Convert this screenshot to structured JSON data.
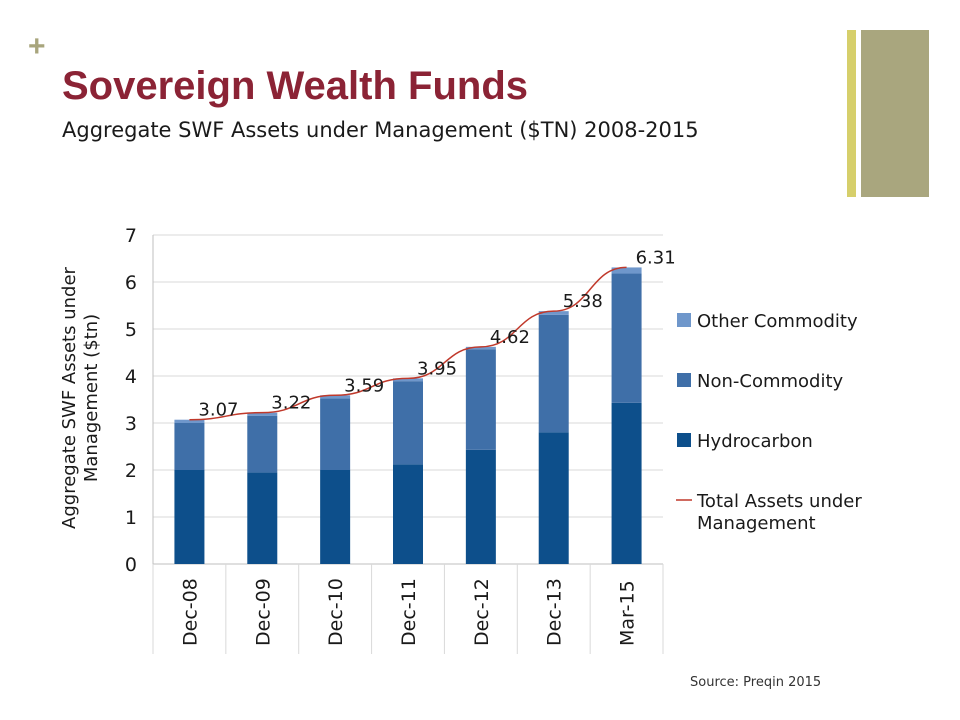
{
  "header": {
    "plus": "+",
    "title": "Sovereign Wealth Funds",
    "subtitle": "Aggregate SWF Assets under Management ($TN) 2008-2015"
  },
  "source": "Source: Preqin 2015",
  "colors": {
    "title": "#8b2335",
    "hydrocarbon": "#0d4f8b",
    "non_commodity": "#3f6fa8",
    "other_commodity": "#6f97cb",
    "total_line": "#c0392b",
    "accent_thin": "#d6cf6b",
    "accent_thick": "#a9a67e"
  },
  "chart_data": {
    "type": "bar",
    "stacked": true,
    "categories": [
      "Dec-08",
      "Dec-09",
      "Dec-10",
      "Dec-11",
      "Dec-12",
      "Dec-13",
      "Mar-15"
    ],
    "series": [
      {
        "name": "Hydrocarbon",
        "values": [
          2.0,
          1.95,
          2.0,
          2.12,
          2.43,
          2.8,
          3.43
        ]
      },
      {
        "name": "Non-Commodity",
        "values": [
          1.0,
          1.2,
          1.52,
          1.77,
          2.14,
          2.5,
          2.75
        ]
      },
      {
        "name": "Other Commodity",
        "values": [
          0.07,
          0.07,
          0.07,
          0.06,
          0.05,
          0.08,
          0.13
        ]
      }
    ],
    "line": {
      "name": "Total Assets under Management",
      "values": [
        3.07,
        3.22,
        3.59,
        3.95,
        4.62,
        5.38,
        6.31
      ]
    },
    "data_labels": [
      "3.07",
      "3.22",
      "3.59",
      "3.95",
      "4.62",
      "5.38",
      "6.31"
    ],
    "ylabel_lines": [
      "Aggregate SWF Assets under",
      "Management ($tn)"
    ],
    "ylim": [
      0,
      7
    ],
    "yticks": [
      0,
      1,
      2,
      3,
      4,
      5,
      6,
      7
    ],
    "legend_position": "right",
    "legend": [
      {
        "label_lines": [
          "Other Commodity"
        ],
        "kind": "box",
        "color_key": "other_commodity"
      },
      {
        "label_lines": [
          "Non-Commodity"
        ],
        "kind": "box",
        "color_key": "non_commodity"
      },
      {
        "label_lines": [
          "Hydrocarbon"
        ],
        "kind": "box",
        "color_key": "hydrocarbon"
      },
      {
        "label_lines": [
          "Total Assets under",
          "Management"
        ],
        "kind": "line",
        "color_key": "total_line"
      }
    ],
    "grid": true
  }
}
